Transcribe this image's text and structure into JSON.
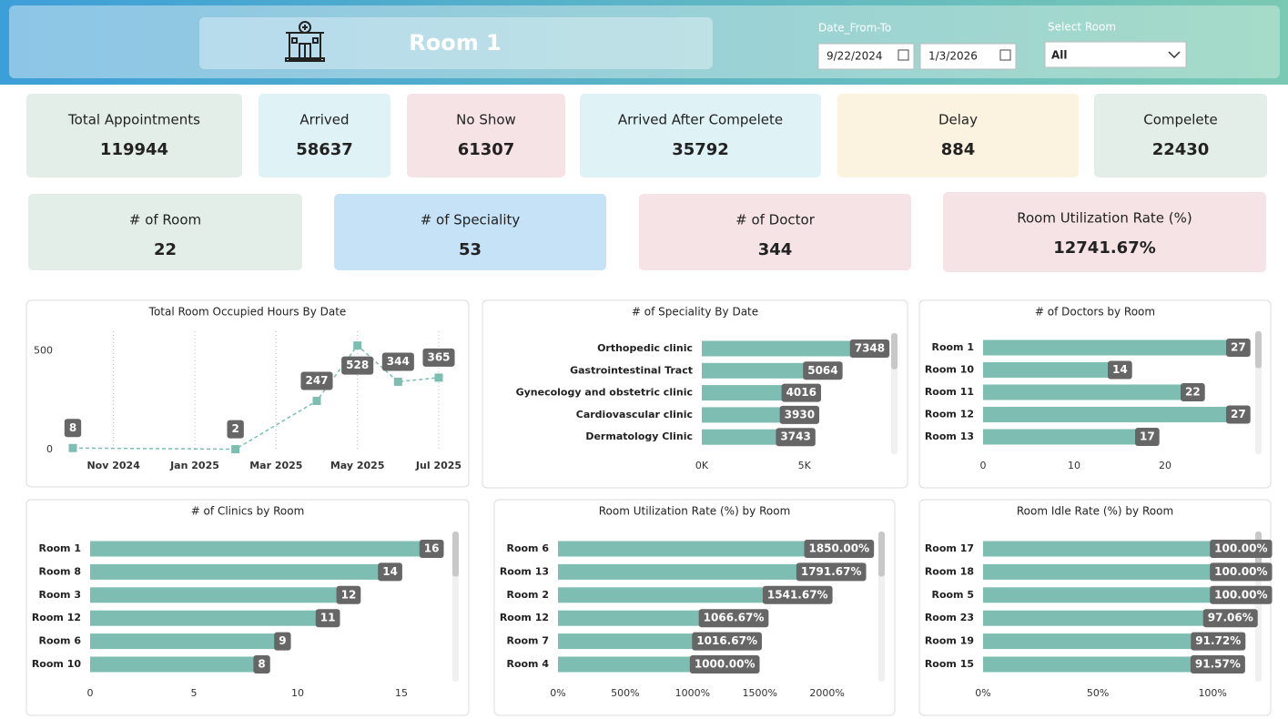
{
  "header": {
    "title": "Room 1",
    "date_label": "Date_From-To",
    "date_from": "9/22/2024",
    "date_to": "1/3/2026",
    "room_label": "Select Room",
    "room_value": "All"
  },
  "kpis": [
    {
      "label": "Total Appointments",
      "value": 119944
    },
    {
      "label": "Arrived",
      "value": 58637
    },
    {
      "label": "No Show",
      "value": 61307
    },
    {
      "label": "Arrived After Compelete",
      "value": 35792
    },
    {
      "label": "Delay",
      "value": 884
    },
    {
      "label": "Compelete",
      "value": 22430
    },
    {
      "label": "# of Room",
      "value": 22
    },
    {
      "label": "# of Speciality",
      "value": 53
    },
    {
      "label": "# of Doctor",
      "value": 344
    },
    {
      "label": "Room Utilization Rate (%)",
      "value": "12741.67%"
    }
  ],
  "chart_data": [
    {
      "type": "line",
      "title": "Total Room Occupied Hours By Date",
      "x": [
        "2024-10",
        "2025-02",
        "2025-04",
        "2025-05",
        "2025-06",
        "2025-07"
      ],
      "values": [
        8,
        2,
        247,
        528,
        344,
        365
      ],
      "color": "#7dbdb2",
      "xlim": [
        "2024-10",
        "2025-07"
      ],
      "xticks": [
        {
          "value": "2024-11",
          "label": "Nov 2024"
        },
        {
          "value": "2025-01",
          "label": "Jan 2025"
        },
        {
          "value": "2025-03",
          "label": "Mar 2025"
        },
        {
          "value": "2025-05",
          "label": "May 2025"
        },
        {
          "value": "2025-07",
          "label": "Jul 2025"
        }
      ],
      "ylim": [
        0,
        600
      ],
      "yticks": [
        0,
        500
      ],
      "grid": true
    },
    {
      "type": "bar",
      "orientation": "horizontal",
      "title": "# of Speciality By Date",
      "categories": [
        "Orthopedic clinic",
        "Gastrointestinal Tract",
        "Gynecology and obstetric clinic",
        "Cardiovascular clinic",
        "Dermatology Clinic"
      ],
      "values": [
        7348,
        5064,
        4016,
        3930,
        3743
      ],
      "color": "#7dbdb2",
      "xlim": [
        0,
        9000
      ],
      "xticks": [
        {
          "value": 0,
          "label": "0K"
        },
        {
          "value": 5000,
          "label": "5K"
        }
      ]
    },
    {
      "type": "bar",
      "orientation": "horizontal",
      "title": "# of Doctors by Room",
      "categories": [
        "Room 1",
        "Room 10",
        "Room 11",
        "Room 12",
        "Room 13"
      ],
      "values": [
        27,
        14,
        22,
        27,
        17
      ],
      "color": "#7dbdb2",
      "xlim": [
        0,
        30
      ],
      "xticks": [
        0,
        10,
        20
      ]
    },
    {
      "type": "bar",
      "orientation": "horizontal",
      "title": "# of Clinics by Room",
      "categories": [
        "Room 1",
        "Room 8",
        "Room 3",
        "Room 12",
        "Room 6",
        "Room 10"
      ],
      "values": [
        16,
        14,
        12,
        11,
        9,
        8
      ],
      "color": "#7dbdb2",
      "xlim": [
        0,
        17.5
      ],
      "xticks": [
        0,
        5,
        10,
        15
      ]
    },
    {
      "type": "bar",
      "orientation": "horizontal",
      "title": "Room Utilization Rate (%) by Room",
      "categories": [
        "Room 6",
        "Room 13",
        "Room 2",
        "Room 12",
        "Room 7",
        "Room 4"
      ],
      "values": [
        1850,
        1791.67,
        1541.67,
        1066.67,
        1016.67,
        1000
      ],
      "value_labels": [
        "1850.00%",
        "1791.67%",
        "1541.67%",
        "1066.67%",
        "1016.67%",
        "1000.00%"
      ],
      "color": "#7dbdb2",
      "xlim": [
        0,
        2300
      ],
      "xticks": [
        {
          "value": 0,
          "label": "0%"
        },
        {
          "value": 500,
          "label": "500%"
        },
        {
          "value": 1000,
          "label": "1000%"
        },
        {
          "value": 1500,
          "label": "1500%"
        },
        {
          "value": 2000,
          "label": "2000%"
        }
      ]
    },
    {
      "type": "bar",
      "orientation": "horizontal",
      "title": "Room Idle Rate (%) by Room",
      "categories": [
        "Room 17",
        "Room 18",
        "Room 5",
        "Room 23",
        "Room 19",
        "Room 15"
      ],
      "values": [
        100,
        100,
        100,
        97.06,
        91.72,
        91.57
      ],
      "value_labels": [
        "100.00%",
        "100.00%",
        "100.00%",
        "97.06%",
        "91.72%",
        "91.57%"
      ],
      "color": "#7dbdb2",
      "xlim": [
        0,
        115
      ],
      "xticks": [
        {
          "value": 0,
          "label": "0%"
        },
        {
          "value": 50,
          "label": "50%"
        },
        {
          "value": 100,
          "label": "100%"
        }
      ]
    }
  ]
}
